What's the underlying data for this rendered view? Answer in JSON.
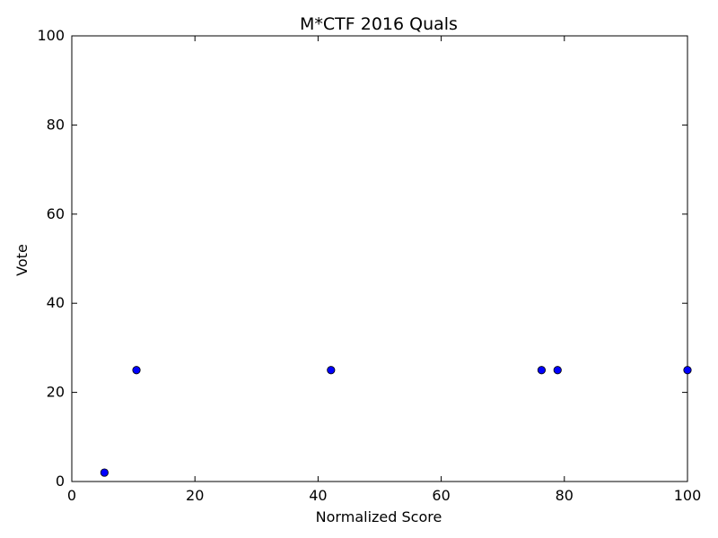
{
  "chart_data": {
    "type": "scatter",
    "title": "M*CTF 2016 Quals",
    "xlabel": "Normalized Score",
    "ylabel": "Vote",
    "xlim": [
      0,
      100
    ],
    "ylim": [
      0,
      100
    ],
    "xticks": [
      0,
      20,
      40,
      60,
      80,
      100
    ],
    "yticks": [
      0,
      20,
      40,
      60,
      80,
      100
    ],
    "xtick_labels": [
      "0",
      "20",
      "40",
      "60",
      "80",
      "100"
    ],
    "ytick_labels": [
      "0",
      "20",
      "40",
      "60",
      "80",
      "100"
    ],
    "grid": false,
    "legend": "none",
    "series": [
      {
        "color": "#0000ff",
        "points": [
          {
            "x": 5.3,
            "y": 2
          },
          {
            "x": 10.5,
            "y": 25
          },
          {
            "x": 42.1,
            "y": 25
          },
          {
            "x": 76.3,
            "y": 25
          },
          {
            "x": 78.9,
            "y": 25
          },
          {
            "x": 100,
            "y": 25
          }
        ]
      }
    ]
  }
}
